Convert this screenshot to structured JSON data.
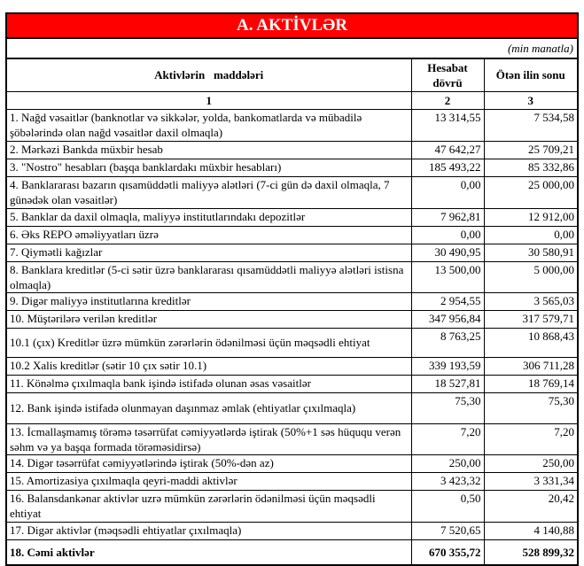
{
  "title": "A. AKTİVLƏR",
  "units": "(min manatla)",
  "columns": {
    "item": "Aktivlərin   maddələri",
    "current": "Hesabat dövrü",
    "previous": "Ötən ilin sonu",
    "num_item": "1",
    "num_current": "2",
    "num_previous": "3"
  },
  "rows": [
    {
      "label": "1. Nağd vəsaitlər (banknotlar və sikkələr, yolda, bankomatlarda və mübadilə şöbələrində olan nağd vəsaitlər daxil olmaqla)",
      "current": "13 314,55",
      "previous": "7 534,58"
    },
    {
      "label": "2. Mərkəzi Bankda müxbir hesab",
      "current": "47 642,27",
      "previous": "25 709,21"
    },
    {
      "label": "3. \"Nostro\" hesabları (başqa banklardakı müxbir hesabları)",
      "current": "185 493,22",
      "previous": "85 332,86"
    },
    {
      "label": "4. Banklararası bazarın qısamüddətli maliyyə alətləri (7-ci gün də daxil olmaqla, 7 günədək olan vəsaitlər)",
      "current": "0,00",
      "previous": "25 000,00"
    },
    {
      "label": "5. Banklar da daxil olmaqla, maliyyə institutlarındakı depozitlər",
      "current": "7 962,81",
      "previous": "12 912,00"
    },
    {
      "label": "6. Əks REPO əməliyyatları üzrə",
      "current": "0,00",
      "previous": "0,00"
    },
    {
      "label": "7. Qiymətli kağızlar",
      "current": "30 490,95",
      "previous": "30 580,91"
    },
    {
      "label": "8. Banklara kreditlər (5-ci sətir üzrə banklararası qısamüddətli maliyyə alətləri istisna olmaqla)",
      "current": "13 500,00",
      "previous": "5 000,00"
    },
    {
      "label": "9. Digər maliyyə institutlarına kreditlər",
      "current": "2 954,55",
      "previous": "3 565,03"
    },
    {
      "label": "10. Müştərilərə verilən kreditlər",
      "current": "347 956,84",
      "previous": "317 579,71"
    },
    {
      "label": "10.1 (çıx) Kreditlər üzrə mümkün zərərlərin ödənilməsi üçün məqsədli ehtiyat",
      "current": "8 763,25",
      "previous": "10 868,43"
    },
    {
      "label": "10.2 Xalis kreditlər (sətir 10 çıx sətir 10.1)",
      "current": "339 193,59",
      "previous": "306 711,28"
    },
    {
      "label": "11. Könəlmə çıxılmaqla bank işində istifadə olunan əsas vəsaitlər",
      "current": "18 527,81",
      "previous": "18 769,14"
    },
    {
      "label": "12. Bank işində istifadə olunmayan daşınmaz əmlak (ehtiyatlar çıxılmaqla)",
      "current": "75,30",
      "previous": "75,30"
    },
    {
      "label": "13. İcmallaşmamış törəmə təsərrüfat cəmiyyətlərdə iştirak (50%+1 səs hüququ verən səhm və ya başqa formada törəməsidirsə)",
      "current": "7,20",
      "previous": "7,20"
    },
    {
      "label": "14. Digər təsərrüfat cəmiyyətlərində iştirak (50%-dən az)",
      "current": "250,00",
      "previous": "250,00"
    },
    {
      "label": "15. Amortizasiya çıxılmaqla qeyri-maddi aktivlər",
      "current": "3 423,32",
      "previous": "3 331,34"
    },
    {
      "label": "16. Balansdankənar aktivlər uzrə mümkün zərərlərin ödənilməsi üçün məqsədli ehtiyat",
      "current": "0,50",
      "previous": "20,42"
    },
    {
      "label": "17. Digər aktivlər (məqsədli ehtiyatlar çıxılmaqla)",
      "current": "7 520,65",
      "previous": "4 140,88"
    },
    {
      "label": "18. Cəmi aktivlər",
      "current": "670 355,72",
      "previous": "528 899,32",
      "bold": true
    }
  ]
}
